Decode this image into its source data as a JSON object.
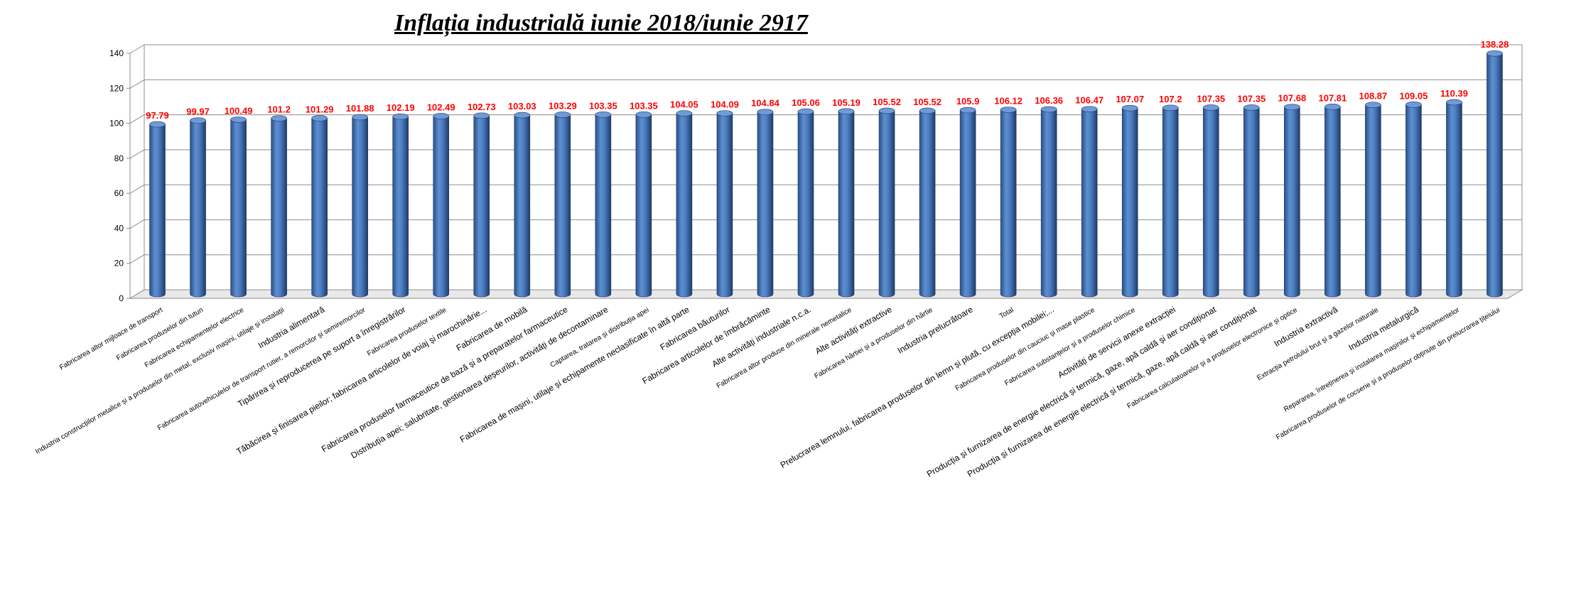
{
  "chart_data": {
    "type": "bar",
    "title": "Inflația industrială iunie 2018/iunie 2917",
    "xlabel": "",
    "ylabel": "",
    "ylim": [
      0,
      140
    ],
    "yticks": [
      0,
      20,
      40,
      60,
      80,
      100,
      120,
      140
    ],
    "grid": true,
    "legend": "none",
    "bar_color": "#4f81bd",
    "label_color": "#ff0000",
    "categories": [
      "Fabricarea altor mijloace de transport",
      "Fabricarea produselor din tutun",
      "Fabricarea echipamentelor electrice",
      "Industria construcțiilor metalice și a produselor din metal, exclusiv mașini, utilaje și instalații",
      "Industria alimentară",
      "Fabricarea autovehiculelor de transport rutier, a remorcilor și semiremorcilor",
      "Tipărirea și reproducerea pe suport a înregistrărilor",
      "Fabricarea produselor textile",
      "Tăbăcirea și finisarea pieilor; fabricarea articolelor de voiaj și marochinărie...",
      "Fabricarea de mobilă",
      "Fabricarea produselor farmaceutice de bază și a preparatelor farmaceutice",
      "Distribuția apei; salubritate, gestionarea deșeurilor, activități de decontaminare",
      "Captarea, tratarea și distribuția apei",
      "Fabricarea de mașini, utilaje și echipamente neclasificate în altă parte",
      "Fabricarea băuturilor",
      "Fabricarea articolelor de îmbrăcăminte",
      "Alte activități industriale n.c.a.",
      "Fabricarea altor produse din minerale nemetalice",
      "Alte activități extractive",
      "Fabricarea hârtiei și a produselor din hârtie",
      "Industria prelucrătoare",
      "Total",
      "Prelucrarea lemnului, fabricarea produselor din lemn și plută, cu excepția mobilei;...",
      "Fabricarea produselor din cauciuc și mase plastice",
      "Fabricarea substanțelor și a produselor chimice",
      "Activități de servicii anexe extracției",
      "Producția și furnizarea de energie electrică și termică, gaze, apă caldă și aer condiționat",
      "Producția și furnizarea de energie electrică și termică, gaze, apă caldă și aer condiționat",
      "Fabricarea calculatoarelor și a produselor electronice și optice",
      "Industria extractivă",
      "Extracția petrolului brut și a gazelor naturale",
      "Industria metalurgică",
      "Repararea, întreținerea și instalarea mașinilor și echipamentelor",
      "Fabricarea produselor de cocserie și a produselor obținute din prelucrarea țițeiului"
    ],
    "values": [
      97.79,
      99.97,
      100.49,
      101.2,
      101.29,
      101.88,
      102.19,
      102.49,
      102.73,
      103.03,
      103.29,
      103.35,
      103.35,
      104.05,
      104.09,
      104.84,
      105.06,
      105.19,
      105.52,
      105.52,
      105.9,
      106.12,
      106.36,
      106.47,
      107.07,
      107.2,
      107.35,
      107.35,
      107.68,
      107.81,
      108.87,
      109.05,
      110.39,
      138.28
    ],
    "label_sizes": [
      "small",
      "small",
      "small",
      "small",
      "large",
      "small",
      "large",
      "small",
      "large",
      "large",
      "large",
      "large",
      "small",
      "large",
      "large",
      "large",
      "large",
      "small",
      "large",
      "small",
      "large",
      "small",
      "large",
      "small",
      "small",
      "large",
      "large",
      "large",
      "small",
      "large",
      "small",
      "large",
      "small",
      "small"
    ]
  }
}
